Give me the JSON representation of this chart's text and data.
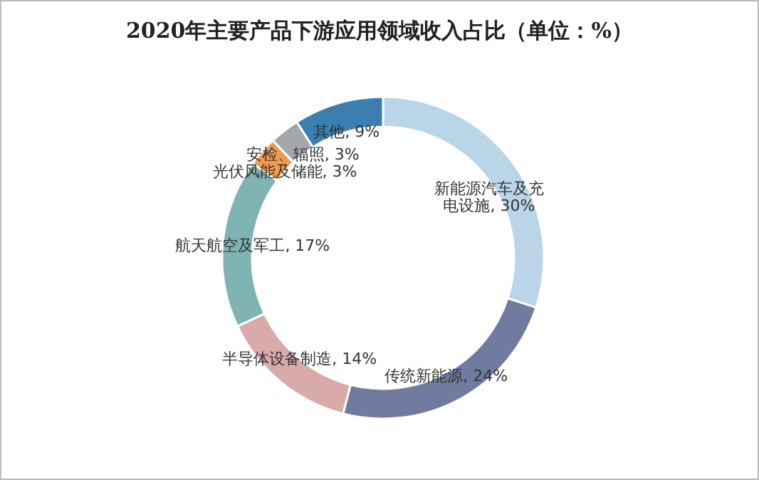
{
  "chart_data": {
    "type": "donut",
    "title": "2020年主要产品下游应用领域收入占比（单位：%）",
    "categories": [
      "新能源汽车及充电设施",
      "传统新能源",
      "半导体设备制造",
      "航天航空及军工",
      "光伏风能及储能",
      "安检、辐照",
      "其他"
    ],
    "values": [
      30,
      24,
      14,
      17,
      3,
      3,
      9
    ],
    "value_labels": [
      "30%",
      "24%",
      "14%",
      "17%",
      "3%",
      "3%",
      "9%"
    ],
    "colors": [
      "#b9d5e7",
      "#717b9f",
      "#d9aaaa",
      "#7fb4b3",
      "#f09b4e",
      "#a3a7ab",
      "#3b7fb2"
    ],
    "legend": false
  }
}
